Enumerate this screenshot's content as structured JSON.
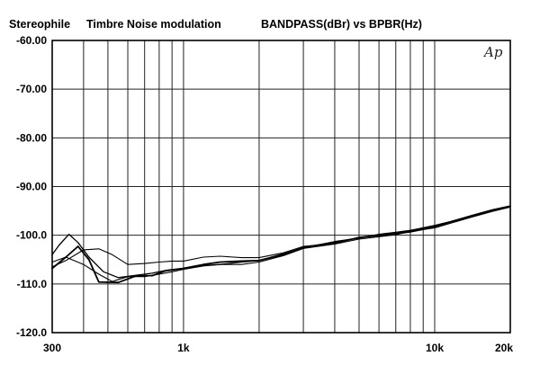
{
  "header": {
    "brand": "Stereophile",
    "chart_title": "Timbre Noise modulation",
    "axes_title": "BANDPASS(dBr)  vs  BPBR(Hz)",
    "logo": "Ap"
  },
  "colors": {
    "ink": "#000000",
    "grid": "#222222",
    "paper": "#ffffff"
  },
  "chart_data": {
    "type": "line",
    "title": "Timbre Noise modulation",
    "xlabel": "BPBR(Hz)",
    "ylabel": "BANDPASS(dBr)",
    "x_scale": "log",
    "xlim": [
      300,
      20000
    ],
    "ylim": [
      -120,
      -60
    ],
    "grid": true,
    "x_tick_labels": [
      {
        "value": 300,
        "label": "300"
      },
      {
        "value": 1000,
        "label": "1k"
      },
      {
        "value": 10000,
        "label": "10k"
      },
      {
        "value": 20000,
        "label": "20k"
      }
    ],
    "y_tick_labels": [
      {
        "value": -60,
        "label": "-60.00"
      },
      {
        "value": -70,
        "label": "-70.00"
      },
      {
        "value": -80,
        "label": "-80.00"
      },
      {
        "value": -90,
        "label": "-90.00"
      },
      {
        "value": -100,
        "label": "-100.0"
      },
      {
        "value": -110,
        "label": "-110.0"
      },
      {
        "value": -120,
        "label": "-120.0"
      }
    ],
    "series": [
      {
        "values": [
          [
            300,
            -106.8
          ],
          [
            340,
            -104.5
          ],
          [
            380,
            -102.3
          ],
          [
            420,
            -105
          ],
          [
            460,
            -109.6
          ],
          [
            550,
            -109.7
          ],
          [
            650,
            -108.3
          ],
          [
            750,
            -108.3
          ],
          [
            850,
            -107.3
          ],
          [
            1000,
            -106.8
          ],
          [
            1200,
            -106
          ],
          [
            1400,
            -105.5
          ],
          [
            1700,
            -105.3
          ],
          [
            2000,
            -105.2
          ],
          [
            2500,
            -104
          ],
          [
            3000,
            -102.5
          ],
          [
            4000,
            -101.5
          ],
          [
            5000,
            -100.5
          ],
          [
            6000,
            -100
          ],
          [
            7000,
            -99.7
          ],
          [
            8000,
            -99.3
          ],
          [
            10000,
            -98.3
          ],
          [
            12000,
            -97
          ],
          [
            14000,
            -96
          ],
          [
            17000,
            -94.8
          ],
          [
            20000,
            -94
          ]
        ]
      },
      {
        "values": [
          [
            300,
            -104
          ],
          [
            320,
            -102
          ],
          [
            350,
            -99.8
          ],
          [
            380,
            -101.5
          ],
          [
            420,
            -104.5
          ],
          [
            480,
            -107.5
          ],
          [
            550,
            -108.7
          ],
          [
            650,
            -108.2
          ],
          [
            750,
            -107.8
          ],
          [
            850,
            -107.2
          ],
          [
            1000,
            -106.8
          ],
          [
            1200,
            -106.2
          ],
          [
            1400,
            -106
          ],
          [
            1700,
            -105.5
          ],
          [
            2000,
            -105.2
          ],
          [
            2500,
            -103.8
          ],
          [
            3000,
            -102.6
          ],
          [
            4000,
            -101.3
          ],
          [
            5000,
            -100.6
          ],
          [
            6000,
            -99.8
          ],
          [
            7000,
            -99.4
          ],
          [
            8000,
            -99
          ],
          [
            10000,
            -98
          ],
          [
            12000,
            -97
          ],
          [
            14000,
            -96.2
          ],
          [
            17000,
            -95
          ],
          [
            20000,
            -94.1
          ]
        ]
      },
      {
        "values": [
          [
            300,
            -105.5
          ],
          [
            340,
            -104.5
          ],
          [
            400,
            -106
          ],
          [
            460,
            -108
          ],
          [
            520,
            -109.5
          ],
          [
            600,
            -108.5
          ],
          [
            700,
            -108.5
          ],
          [
            800,
            -108
          ],
          [
            900,
            -107.5
          ],
          [
            1000,
            -107
          ],
          [
            1200,
            -106.3
          ],
          [
            1400,
            -106
          ],
          [
            1700,
            -106
          ],
          [
            2000,
            -105.5
          ],
          [
            2500,
            -104.2
          ],
          [
            3000,
            -102.7
          ],
          [
            4000,
            -101.8
          ],
          [
            5000,
            -100.8
          ],
          [
            6000,
            -100.3
          ],
          [
            7000,
            -99.9
          ],
          [
            8000,
            -99.2
          ],
          [
            10000,
            -98.5
          ],
          [
            12000,
            -97.3
          ],
          [
            14000,
            -96.3
          ],
          [
            17000,
            -95.1
          ],
          [
            20000,
            -94.2
          ]
        ]
      },
      {
        "values": [
          [
            300,
            -106.5
          ],
          [
            340,
            -105.2
          ],
          [
            400,
            -103
          ],
          [
            460,
            -102.8
          ],
          [
            520,
            -104
          ],
          [
            600,
            -106
          ],
          [
            700,
            -105.8
          ],
          [
            800,
            -105.5
          ],
          [
            900,
            -105.3
          ],
          [
            1000,
            -105.3
          ],
          [
            1200,
            -104.5
          ],
          [
            1400,
            -104.3
          ],
          [
            1700,
            -104.6
          ],
          [
            2000,
            -104.6
          ],
          [
            2500,
            -103.6
          ],
          [
            3000,
            -102.3
          ],
          [
            4000,
            -101.7
          ],
          [
            5000,
            -100.4
          ],
          [
            6000,
            -100.1
          ],
          [
            7000,
            -99.6
          ],
          [
            8000,
            -99.1
          ],
          [
            10000,
            -98.2
          ],
          [
            12000,
            -97.1
          ],
          [
            14000,
            -96.1
          ],
          [
            17000,
            -94.9
          ],
          [
            20000,
            -94
          ]
        ]
      }
    ]
  }
}
